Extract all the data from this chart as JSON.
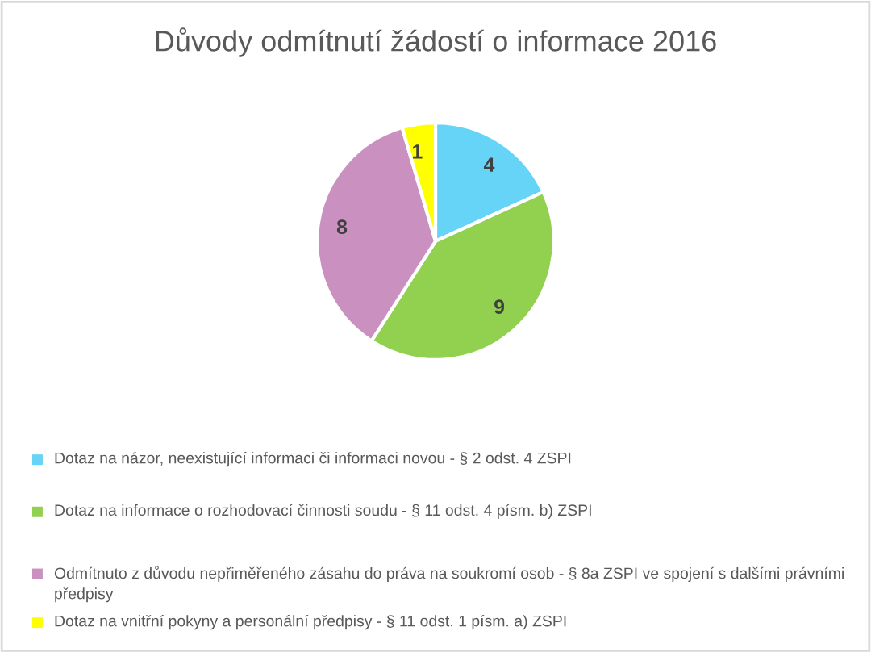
{
  "chart_data": {
    "type": "pie",
    "title": "Důvody odmítnutí žádostí o informace 2016",
    "categories": [
      "Dotaz na názor, neexistující informaci či informaci novou - § 2 odst. 4 ZSPI",
      "Dotaz na informace o rozhodovací činnosti soudu - § 11 odst. 4 písm. b) ZSPI",
      "Odmítnuto z důvodu nepřiměřeného zásahu do práva na soukromí osob - § 8a ZSPI ve spojení s dalšími právními předpisy",
      "Dotaz na vnitřní pokyny a personální předpisy - § 11 odst. 1 písm. a) ZSPI"
    ],
    "values": [
      4,
      9,
      8,
      1
    ],
    "colors": [
      "#66d4f7",
      "#92d050",
      "#c990c0",
      "#ffff00"
    ],
    "data_labels": true,
    "legend": "bottom"
  }
}
